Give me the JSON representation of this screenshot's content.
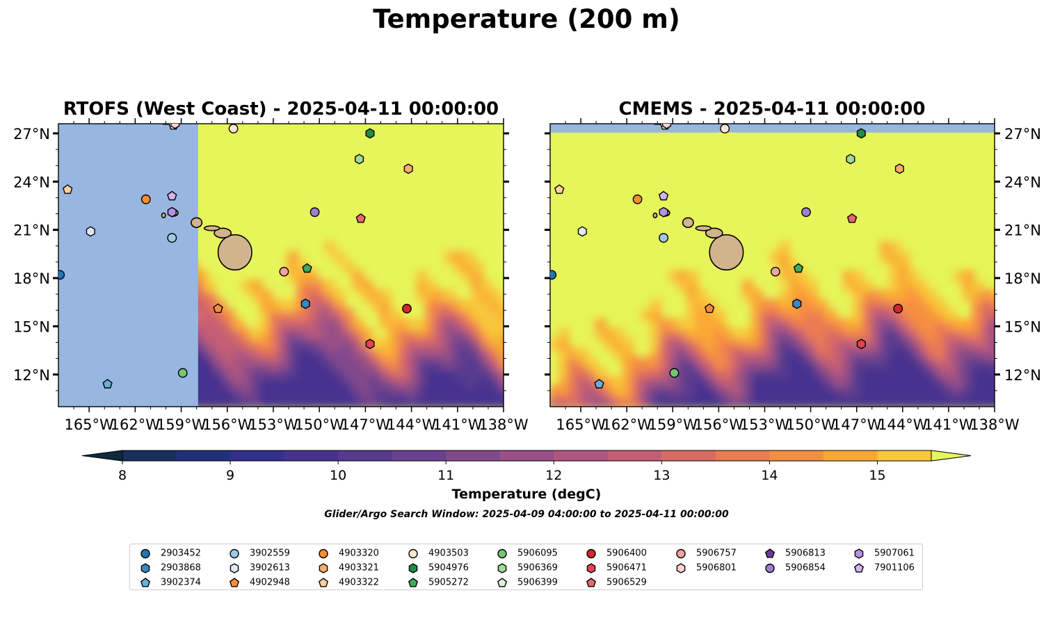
{
  "figure": {
    "title": "Temperature (200 m)",
    "note": "Glider/Argo Search Window: 2025-04-09 04:00:00 to 2025-04-11 00:00:00"
  },
  "panels": [
    {
      "title": "RTOFS (West Coast) - 2025-04-11 00:00:00"
    },
    {
      "title": "CMEMS - 2025-04-11 00:00:00"
    }
  ],
  "chart_data": {
    "type": "map",
    "map_extent": {
      "lon": [
        -167,
        -138
      ],
      "lat": [
        10,
        27.6
      ]
    },
    "x_ticks": [
      "165°W",
      "162°W",
      "159°W",
      "156°W",
      "153°W",
      "150°W",
      "147°W",
      "144°W",
      "141°W",
      "138°W"
    ],
    "x_tick_values": [
      -165,
      -162,
      -159,
      -156,
      -153,
      -150,
      -147,
      -144,
      -141,
      -138
    ],
    "y_ticks": [
      "27°N",
      "24°N",
      "21°N",
      "18°N",
      "15°N",
      "12°N"
    ],
    "y_tick_values": [
      27,
      24,
      21,
      18,
      15,
      12
    ],
    "colorbar": {
      "label": "Temperature (degC)",
      "range": [
        8,
        15.5
      ],
      "tick_labels": [
        "8",
        "9",
        "10",
        "11",
        "12",
        "13",
        "14",
        "15"
      ],
      "tick_values": [
        8,
        9,
        10,
        11,
        12,
        13,
        14,
        15
      ],
      "levels": [
        8,
        8.5,
        9,
        9.5,
        10,
        10.5,
        11,
        11.5,
        12,
        12.5,
        13,
        13.5,
        14,
        14.5,
        15,
        15.5
      ],
      "colors": [
        "#0f2a3d",
        "#162f5c",
        "#21307a",
        "#332f8c",
        "#46338f",
        "#573a8f",
        "#6a418e",
        "#80498b",
        "#984f86",
        "#af5680",
        "#c55e74",
        "#da6a63",
        "#ea7b52",
        "#f68e42",
        "#fba734",
        "#f8c73b",
        "#e6f55a"
      ],
      "extend": "both"
    },
    "land_color": "#d2b48c",
    "masked_color": "#98b6e0",
    "floats": [
      {
        "id": "2903452",
        "color": "#1f77b4",
        "marker": "circle",
        "lon": -166.9,
        "lat": 18.2
      },
      {
        "id": "2903868",
        "color": "#3a87c2",
        "marker": "hexagon",
        "lon": -150.9,
        "lat": 16.4
      },
      {
        "id": "3902374",
        "color": "#6baed6",
        "marker": "pentagon",
        "lon": -163.8,
        "lat": 11.4
      },
      {
        "id": "3902559",
        "color": "#9ecae1",
        "marker": "circle",
        "lon": -159.6,
        "lat": 20.5
      },
      {
        "id": "3902613",
        "color": "#deebf7",
        "marker": "hexagon",
        "lon": -164.9,
        "lat": 20.9
      },
      {
        "id": "4902948",
        "color": "#fd8d3c",
        "marker": "pentagon",
        "lon": -156.6,
        "lat": 16.1
      },
      {
        "id": "4903320",
        "color": "#f58f2f",
        "marker": "circle",
        "lon": -161.3,
        "lat": 22.9
      },
      {
        "id": "4903321",
        "color": "#fdae6b",
        "marker": "hexagon",
        "lon": -144.2,
        "lat": 24.8
      },
      {
        "id": "4903322",
        "color": "#fdd0a2",
        "marker": "pentagon",
        "lon": -166.4,
        "lat": 23.5
      },
      {
        "id": "4903503",
        "color": "#fee6ce",
        "marker": "circle",
        "lon": -155.6,
        "lat": 27.3
      },
      {
        "id": "5904976",
        "color": "#238b45",
        "marker": "hexagon",
        "lon": -146.7,
        "lat": 27.0
      },
      {
        "id": "5905272",
        "color": "#41ab5d",
        "marker": "pentagon",
        "lon": -150.8,
        "lat": 18.6
      },
      {
        "id": "5906095",
        "color": "#74c476",
        "marker": "circle",
        "lon": -158.9,
        "lat": 12.1
      },
      {
        "id": "5906369",
        "color": "#a1d99b",
        "marker": "hexagon",
        "lon": -147.4,
        "lat": 25.4
      },
      {
        "id": "5906399",
        "color": "#d9f7d0",
        "marker": "pentagon",
        "lon": -159.5,
        "lat": 27.5
      },
      {
        "id": "5906400",
        "color": "#d62728",
        "marker": "circle",
        "lon": -144.3,
        "lat": 16.1
      },
      {
        "id": "5906471",
        "color": "#e0454f",
        "marker": "hexagon",
        "lon": -146.7,
        "lat": 13.9
      },
      {
        "id": "5906529",
        "color": "#e8696b",
        "marker": "pentagon",
        "lon": -147.3,
        "lat": 21.7
      },
      {
        "id": "5906757",
        "color": "#f4a3a3",
        "marker": "circle",
        "lon": -152.3,
        "lat": 18.4
      },
      {
        "id": "5906801",
        "color": "#fdd3d3",
        "marker": "hexagon",
        "lon": -159.4,
        "lat": 27.6
      },
      {
        "id": "5906813",
        "color": "#6a3d9a",
        "marker": "pentagon",
        "lon": -160.0,
        "lat": 27.8
      },
      {
        "id": "5906854",
        "color": "#9e7fd0",
        "marker": "circle",
        "lon": -150.3,
        "lat": 22.1
      },
      {
        "id": "5907061",
        "color": "#b592e0",
        "marker": "hexagon",
        "lon": -159.6,
        "lat": 22.1
      },
      {
        "id": "7901106",
        "color": "#d0b4f0",
        "marker": "pentagon",
        "lon": -159.6,
        "lat": 23.1
      }
    ]
  },
  "legend_order": [
    [
      "2903452",
      "2903868",
      "3902374"
    ],
    [
      "3902559",
      "3902613",
      "4902948"
    ],
    [
      "4903320",
      "4903321",
      "4903322"
    ],
    [
      "4903503",
      "5904976",
      "5905272"
    ],
    [
      "5906095",
      "5906369",
      "5906399"
    ],
    [
      "5906400",
      "5906471",
      "5906529"
    ],
    [
      "5906757",
      "5906801"
    ],
    [
      "5906813",
      "5906854"
    ],
    [
      "5907061",
      "7901106"
    ]
  ]
}
